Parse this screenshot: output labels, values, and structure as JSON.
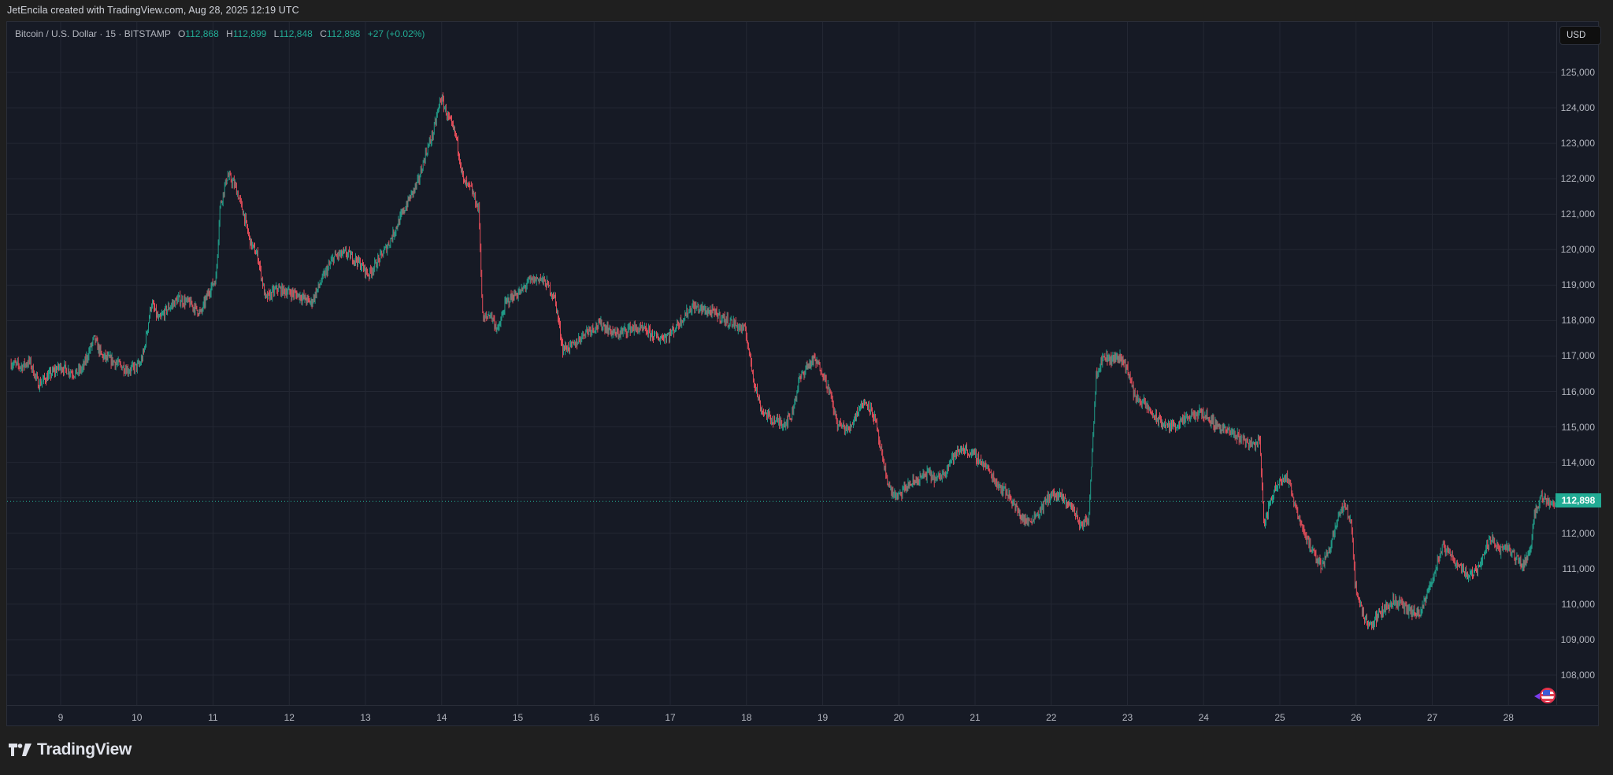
{
  "header": {
    "credit": "JetEncila created with TradingView.com, Aug 28, 2025 12:19 UTC"
  },
  "legend": {
    "symbol": "Bitcoin / U.S. Dollar · 15 · BITSTAMP",
    "o_label": "O",
    "o_value": "112,868",
    "h_label": "H",
    "h_value": "112,899",
    "l_label": "L",
    "l_value": "112,848",
    "c_label": "C",
    "c_value": "112,898",
    "change": "+27 (+0.02%)"
  },
  "price_axis": {
    "currency_button": "USD",
    "last_price_label": "112,898"
  },
  "branding": {
    "logo_text": "TradingView"
  },
  "colors": {
    "up": "#22ab94",
    "down": "#f7525f",
    "background": "#161a25",
    "grid": "#232733",
    "axis_text": "#b2b5be",
    "last_price": "#22ab94"
  },
  "chart_data": {
    "type": "candlestick",
    "title": "Bitcoin / U.S. Dollar · 15 · BITSTAMP",
    "interval": "15",
    "exchange": "BITSTAMP",
    "xlabel": "",
    "ylabel": "USD",
    "x_ticks": [
      "9",
      "10",
      "11",
      "12",
      "13",
      "14",
      "15",
      "16",
      "17",
      "18",
      "19",
      "20",
      "21",
      "22",
      "23",
      "24",
      "25",
      "26",
      "27",
      "28"
    ],
    "y_ticks": [
      108000,
      109000,
      110000,
      111000,
      112000,
      113000,
      114000,
      115000,
      116000,
      117000,
      118000,
      119000,
      120000,
      121000,
      122000,
      123000,
      124000,
      125000
    ],
    "ylim": [
      107500,
      126900
    ],
    "xlim": [
      8.35,
      28.65
    ],
    "grid": true,
    "last_price": 112898,
    "ohlc_last": {
      "open": 112868,
      "high": 112899,
      "low": 112848,
      "close": 112898,
      "change": 27,
      "change_pct": 0.02
    },
    "path": [
      [
        8.35,
        116800
      ],
      [
        8.5,
        116700
      ],
      [
        8.6,
        116850
      ],
      [
        8.72,
        116200
      ],
      [
        8.8,
        116350
      ],
      [
        9.0,
        116700
      ],
      [
        9.2,
        116500
      ],
      [
        9.3,
        116650
      ],
      [
        9.45,
        117500
      ],
      [
        9.55,
        117000
      ],
      [
        9.7,
        116850
      ],
      [
        9.9,
        116600
      ],
      [
        10.05,
        116750
      ],
      [
        10.1,
        117100
      ],
      [
        10.2,
        118500
      ],
      [
        10.3,
        118000
      ],
      [
        10.4,
        118300
      ],
      [
        10.55,
        118600
      ],
      [
        10.7,
        118500
      ],
      [
        10.85,
        118200
      ],
      [
        10.95,
        118800
      ],
      [
        11.05,
        119200
      ],
      [
        11.1,
        121200
      ],
      [
        11.2,
        122100
      ],
      [
        11.3,
        121800
      ],
      [
        11.4,
        121100
      ],
      [
        11.5,
        120200
      ],
      [
        11.6,
        119800
      ],
      [
        11.7,
        118600
      ],
      [
        11.85,
        118900
      ],
      [
        12.0,
        118800
      ],
      [
        12.15,
        118700
      ],
      [
        12.3,
        118500
      ],
      [
        12.45,
        119200
      ],
      [
        12.6,
        119800
      ],
      [
        12.75,
        119900
      ],
      [
        12.9,
        119700
      ],
      [
        13.05,
        119300
      ],
      [
        13.15,
        119600
      ],
      [
        13.3,
        120100
      ],
      [
        13.45,
        120800
      ],
      [
        13.6,
        121500
      ],
      [
        13.7,
        121900
      ],
      [
        13.8,
        122700
      ],
      [
        13.9,
        123300
      ],
      [
        14.0,
        124300
      ],
      [
        14.1,
        123700
      ],
      [
        14.2,
        123200
      ],
      [
        14.3,
        121900
      ],
      [
        14.4,
        121700
      ],
      [
        14.5,
        121100
      ],
      [
        14.55,
        118000
      ],
      [
        14.65,
        118200
      ],
      [
        14.75,
        117700
      ],
      [
        14.85,
        118500
      ],
      [
        14.95,
        118700
      ],
      [
        15.05,
        118800
      ],
      [
        15.15,
        119100
      ],
      [
        15.3,
        119200
      ],
      [
        15.4,
        119000
      ],
      [
        15.5,
        118600
      ],
      [
        15.6,
        117200
      ],
      [
        15.75,
        117300
      ],
      [
        15.9,
        117700
      ],
      [
        16.1,
        117900
      ],
      [
        16.3,
        117600
      ],
      [
        16.5,
        117800
      ],
      [
        16.7,
        117700
      ],
      [
        16.85,
        117500
      ],
      [
        17.0,
        117600
      ],
      [
        17.15,
        118000
      ],
      [
        17.3,
        118400
      ],
      [
        17.45,
        118300
      ],
      [
        17.6,
        118200
      ],
      [
        17.75,
        118000
      ],
      [
        17.85,
        117900
      ],
      [
        18.0,
        117700
      ],
      [
        18.1,
        116400
      ],
      [
        18.2,
        115500
      ],
      [
        18.35,
        115200
      ],
      [
        18.5,
        115100
      ],
      [
        18.6,
        115300
      ],
      [
        18.7,
        116300
      ],
      [
        18.8,
        116700
      ],
      [
        18.9,
        116900
      ],
      [
        19.0,
        116600
      ],
      [
        19.1,
        116000
      ],
      [
        19.2,
        115100
      ],
      [
        19.35,
        114900
      ],
      [
        19.5,
        115600
      ],
      [
        19.6,
        115700
      ],
      [
        19.7,
        115200
      ],
      [
        19.8,
        114000
      ],
      [
        19.9,
        113200
      ],
      [
        20.0,
        113000
      ],
      [
        20.1,
        113300
      ],
      [
        20.25,
        113500
      ],
      [
        20.4,
        113700
      ],
      [
        20.5,
        113500
      ],
      [
        20.6,
        113700
      ],
      [
        20.7,
        114100
      ],
      [
        20.85,
        114400
      ],
      [
        21.0,
        114200
      ],
      [
        21.15,
        113900
      ],
      [
        21.3,
        113400
      ],
      [
        21.45,
        113100
      ],
      [
        21.6,
        112500
      ],
      [
        21.7,
        112300
      ],
      [
        21.85,
        112600
      ],
      [
        22.0,
        113100
      ],
      [
        22.15,
        113000
      ],
      [
        22.3,
        112700
      ],
      [
        22.4,
        112200
      ],
      [
        22.5,
        112400
      ],
      [
        22.6,
        116500
      ],
      [
        22.7,
        117000
      ],
      [
        22.8,
        116900
      ],
      [
        22.9,
        117000
      ],
      [
        23.0,
        116700
      ],
      [
        23.1,
        115900
      ],
      [
        23.25,
        115600
      ],
      [
        23.4,
        115200
      ],
      [
        23.55,
        115000
      ],
      [
        23.7,
        115100
      ],
      [
        23.85,
        115300
      ],
      [
        24.0,
        115400
      ],
      [
        24.15,
        115100
      ],
      [
        24.3,
        114900
      ],
      [
        24.5,
        114700
      ],
      [
        24.65,
        114500
      ],
      [
        24.75,
        114600
      ],
      [
        24.8,
        112200
      ],
      [
        24.9,
        113000
      ],
      [
        25.0,
        113500
      ],
      [
        25.1,
        113600
      ],
      [
        25.2,
        112900
      ],
      [
        25.3,
        112200
      ],
      [
        25.45,
        111400
      ],
      [
        25.55,
        111100
      ],
      [
        25.65,
        111500
      ],
      [
        25.75,
        112300
      ],
      [
        25.85,
        112800
      ],
      [
        25.95,
        112300
      ],
      [
        26.0,
        110500
      ],
      [
        26.1,
        109700
      ],
      [
        26.2,
        109400
      ],
      [
        26.35,
        109800
      ],
      [
        26.5,
        110100
      ],
      [
        26.6,
        110000
      ],
      [
        26.7,
        109800
      ],
      [
        26.85,
        109700
      ],
      [
        26.95,
        110300
      ],
      [
        27.05,
        111000
      ],
      [
        27.15,
        111600
      ],
      [
        27.25,
        111400
      ],
      [
        27.35,
        111100
      ],
      [
        27.5,
        110800
      ],
      [
        27.6,
        111000
      ],
      [
        27.7,
        111500
      ],
      [
        27.8,
        111900
      ],
      [
        27.9,
        111500
      ],
      [
        28.0,
        111600
      ],
      [
        28.1,
        111300
      ],
      [
        28.2,
        111100
      ],
      [
        28.3,
        111500
      ],
      [
        28.35,
        112600
      ],
      [
        28.45,
        113000
      ],
      [
        28.55,
        112900
      ],
      [
        28.62,
        112898
      ]
    ]
  }
}
